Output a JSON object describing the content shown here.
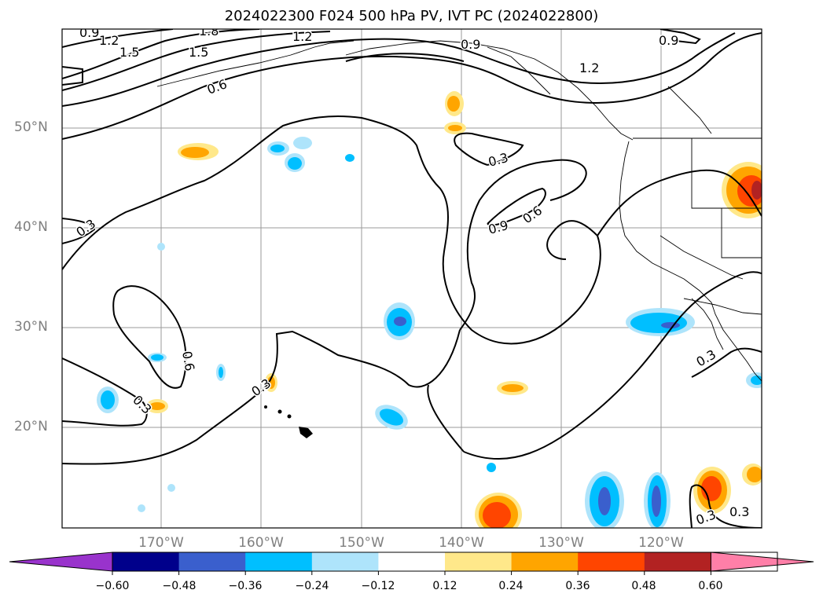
{
  "title": "2024022300 F024 500 hPa PV, IVT PC (2024022800)",
  "map": {
    "lon_range": [
      -180,
      -110
    ],
    "lat_range": [
      10,
      60
    ],
    "grid": true,
    "lat_labels": [
      "50°N",
      "40°N",
      "30°N",
      "20°N"
    ],
    "lon_labels": [
      "170°W",
      "160°W",
      "150°W",
      "140°W",
      "130°W",
      "120°W"
    ],
    "contour_labels": [
      "0.9",
      "1.2",
      "1.5",
      "1.8",
      "1.5",
      "1.2",
      "0.9",
      "1.2",
      "0.9",
      "0.6",
      "0.3",
      "0.9",
      "0.6",
      "0.3",
      "0.6",
      "0.3",
      "0.3",
      "0.3",
      "0.3",
      "0.3"
    ]
  },
  "colorbar": {
    "ticks": [
      "−0.60",
      "−0.48",
      "−0.36",
      "−0.24",
      "−0.12",
      "0.12",
      "0.24",
      "0.36",
      "0.48",
      "0.60"
    ],
    "colors": [
      "#9933cc",
      "#00008b",
      "#3a5fcd",
      "#00bfff",
      "#aee4fb",
      "#ffffff",
      "#ffe88a",
      "#ffa500",
      "#ff4500",
      "#b22222",
      "#ff7fa8"
    ]
  }
}
